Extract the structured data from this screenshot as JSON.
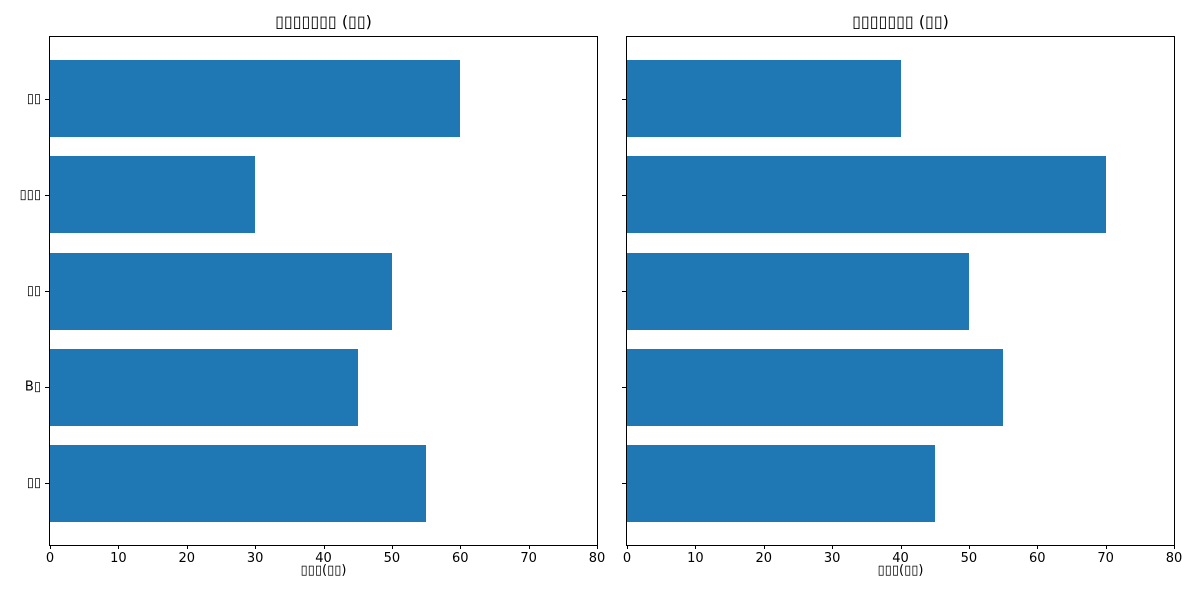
{
  "figure": {
    "background": "#ffffff",
    "bar_color": "#1f77b4",
    "axis_color": "#000000",
    "text_color": "#000000"
  },
  "chart_data": [
    {
      "type": "bar",
      "orientation": "horizontal",
      "title": "▯▯▯▯▯▯▯ (▯▯)",
      "xlabel": "▯▯▯(▯▯)",
      "ylabel": "",
      "categories": [
        "▯▯",
        "▯▯▯",
        "▯▯",
        "B▯",
        "▯▯"
      ],
      "values": [
        60,
        30,
        50,
        45,
        55
      ],
      "xlim": [
        0,
        80
      ],
      "xticks": [
        0,
        10,
        20,
        30,
        40,
        50,
        60,
        70,
        80
      ],
      "grid": false,
      "legend": false
    },
    {
      "type": "bar",
      "orientation": "horizontal",
      "title": "▯▯▯▯▯▯▯ (▯▯)",
      "xlabel": "▯▯▯(▯▯)",
      "ylabel": "",
      "categories": [
        "",
        "",
        "",
        "",
        ""
      ],
      "values": [
        40,
        70,
        50,
        55,
        45
      ],
      "xlim": [
        0,
        80
      ],
      "xticks": [
        0,
        10,
        20,
        30,
        40,
        50,
        60,
        70,
        80
      ],
      "grid": false,
      "legend": false
    }
  ]
}
